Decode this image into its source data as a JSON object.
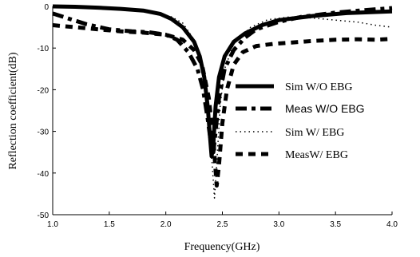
{
  "chart_data": {
    "type": "line",
    "title": "",
    "xlabel": "Frequency(GHz)",
    "ylabel": "Reflection coefficient(dB)",
    "xlim": [
      1.0,
      4.0
    ],
    "ylim": [
      -50,
      0
    ],
    "xticks": [
      "1.0",
      "1.5",
      "2.0",
      "2.5",
      "3.0",
      "3.5",
      "4.0"
    ],
    "yticks": [
      "0",
      "-10",
      "-20",
      "-30",
      "-40",
      "-50"
    ],
    "grid": false,
    "legend_position": "right",
    "series": [
      {
        "name": "Sim W/O EBG",
        "style": "solid",
        "color": "#000000",
        "points": [
          [
            1.0,
            0
          ],
          [
            1.2,
            -0.1
          ],
          [
            1.4,
            -0.3
          ],
          [
            1.6,
            -0.6
          ],
          [
            1.8,
            -1.0
          ],
          [
            1.95,
            -1.8
          ],
          [
            2.05,
            -3.0
          ],
          [
            2.15,
            -5.0
          ],
          [
            2.25,
            -8.5
          ],
          [
            2.3,
            -12
          ],
          [
            2.34,
            -17
          ],
          [
            2.37,
            -24
          ],
          [
            2.39,
            -31
          ],
          [
            2.405,
            -36
          ],
          [
            2.42,
            -33
          ],
          [
            2.44,
            -24
          ],
          [
            2.47,
            -17
          ],
          [
            2.52,
            -12
          ],
          [
            2.6,
            -8.5
          ],
          [
            2.7,
            -6.5
          ],
          [
            2.85,
            -4.5
          ],
          [
            3.0,
            -3.3
          ],
          [
            3.3,
            -2.3
          ],
          [
            3.6,
            -1.6
          ],
          [
            4.0,
            -1.2
          ]
        ]
      },
      {
        "name": "Meas W/O EBG",
        "style": "dashdot",
        "color": "#000000",
        "points": [
          [
            1.0,
            -1.7
          ],
          [
            1.15,
            -3.0
          ],
          [
            1.3,
            -4.3
          ],
          [
            1.5,
            -5.5
          ],
          [
            1.7,
            -6.0
          ],
          [
            1.85,
            -6.2
          ],
          [
            2.0,
            -6.8
          ],
          [
            2.1,
            -8.0
          ],
          [
            2.2,
            -11
          ],
          [
            2.28,
            -15
          ],
          [
            2.33,
            -20
          ],
          [
            2.37,
            -27
          ],
          [
            2.4,
            -33
          ],
          [
            2.42,
            -35
          ],
          [
            2.44,
            -30
          ],
          [
            2.47,
            -22
          ],
          [
            2.52,
            -15
          ],
          [
            2.6,
            -10.5
          ],
          [
            2.7,
            -7.5
          ],
          [
            2.8,
            -5.5
          ],
          [
            3.0,
            -3.7
          ],
          [
            3.2,
            -2.5
          ],
          [
            3.5,
            -1.5
          ],
          [
            3.8,
            -0.8
          ],
          [
            4.0,
            -0.4
          ]
        ]
      },
      {
        "name": "Sim W/ EBG",
        "style": "dotted",
        "color": "#000000",
        "points": [
          [
            1.0,
            -0.2
          ],
          [
            1.3,
            -0.4
          ],
          [
            1.6,
            -0.8
          ],
          [
            1.9,
            -1.5
          ],
          [
            2.05,
            -2.5
          ],
          [
            2.15,
            -4.0
          ],
          [
            2.25,
            -8.0
          ],
          [
            2.32,
            -14
          ],
          [
            2.37,
            -24
          ],
          [
            2.41,
            -38
          ],
          [
            2.43,
            -46
          ],
          [
            2.45,
            -38
          ],
          [
            2.48,
            -24
          ],
          [
            2.52,
            -15
          ],
          [
            2.6,
            -9.0
          ],
          [
            2.75,
            -5.0
          ],
          [
            2.9,
            -3.2
          ],
          [
            3.1,
            -2.5
          ],
          [
            3.3,
            -2.8
          ],
          [
            3.5,
            -3.3
          ],
          [
            3.7,
            -3.8
          ],
          [
            3.85,
            -4.5
          ],
          [
            4.0,
            -5.0
          ]
        ]
      },
      {
        "name": "MeasW/ EBG",
        "style": "dashed",
        "color": "#000000",
        "points": [
          [
            1.0,
            -4.5
          ],
          [
            1.2,
            -5.0
          ],
          [
            1.4,
            -5.5
          ],
          [
            1.6,
            -6.0
          ],
          [
            1.8,
            -6.3
          ],
          [
            2.0,
            -6.8
          ],
          [
            2.15,
            -8.0
          ],
          [
            2.25,
            -10.5
          ],
          [
            2.32,
            -14
          ],
          [
            2.38,
            -22
          ],
          [
            2.42,
            -32
          ],
          [
            2.45,
            -43
          ],
          [
            2.47,
            -38
          ],
          [
            2.5,
            -28
          ],
          [
            2.54,
            -20
          ],
          [
            2.6,
            -14
          ],
          [
            2.68,
            -11
          ],
          [
            2.8,
            -9.5
          ],
          [
            2.95,
            -9.0
          ],
          [
            3.1,
            -8.7
          ],
          [
            3.3,
            -8.3
          ],
          [
            3.5,
            -8.0
          ],
          [
            3.7,
            -7.9
          ],
          [
            3.85,
            -8.0
          ],
          [
            4.0,
            -7.8
          ]
        ]
      }
    ]
  }
}
